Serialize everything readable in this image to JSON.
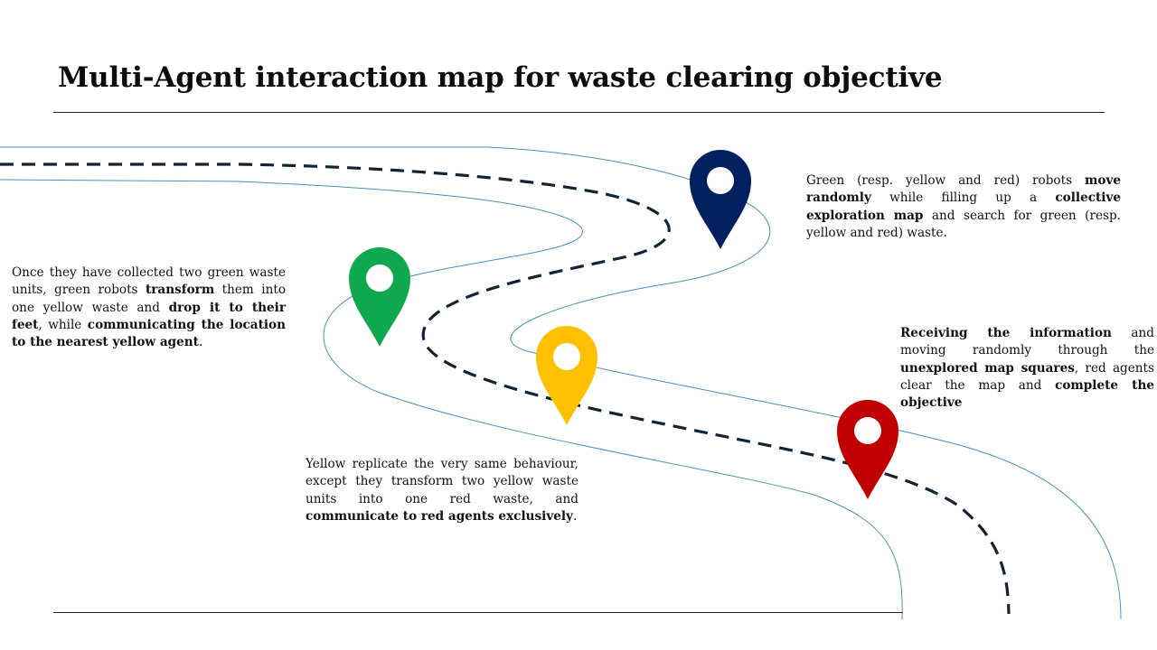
{
  "slide": {
    "title": "Multi-Agent interaction map for waste clearing objective"
  },
  "colors": {
    "road_edge": "#4a90b8",
    "road_dash": "#0f2438",
    "pin_green": "#10a84e",
    "pin_yellow": "#fec000",
    "pin_blue": "#002060",
    "pin_red": "#c00000"
  },
  "descriptions": {
    "green": [
      {
        "t": "Once they have collected two green waste units, green robots ",
        "b": false
      },
      {
        "t": "transform",
        "b": true
      },
      {
        "t": " them into one yellow waste and ",
        "b": false
      },
      {
        "t": "drop it to their feet",
        "b": true
      },
      {
        "t": ", while ",
        "b": false
      },
      {
        "t": "communicating the location to the nearest yellow agent",
        "b": true
      },
      {
        "t": ".",
        "b": false
      }
    ],
    "blue": [
      {
        "t": "Green (resp. yellow and red) robots ",
        "b": false
      },
      {
        "t": "move randomly",
        "b": true
      },
      {
        "t": " while filling up a ",
        "b": false
      },
      {
        "t": "collective exploration map",
        "b": true
      },
      {
        "t": " and search for green (resp. yellow and red) waste.",
        "b": false
      }
    ],
    "red": [
      {
        "t": "Receiving the information",
        "b": true
      },
      {
        "t": " and moving randomly through the ",
        "b": false
      },
      {
        "t": "unexplored map squares",
        "b": true
      },
      {
        "t": ", red agents clear the map and ",
        "b": false
      },
      {
        "t": "complete the objective",
        "b": true
      }
    ],
    "yellow": [
      {
        "t": "Yellow replicate the very same behaviour, except they transform two yellow waste units into one red waste, and ",
        "b": false
      },
      {
        "t": "communicate to red agents exclusively",
        "b": true
      },
      {
        "t": ".",
        "b": false
      }
    ]
  }
}
